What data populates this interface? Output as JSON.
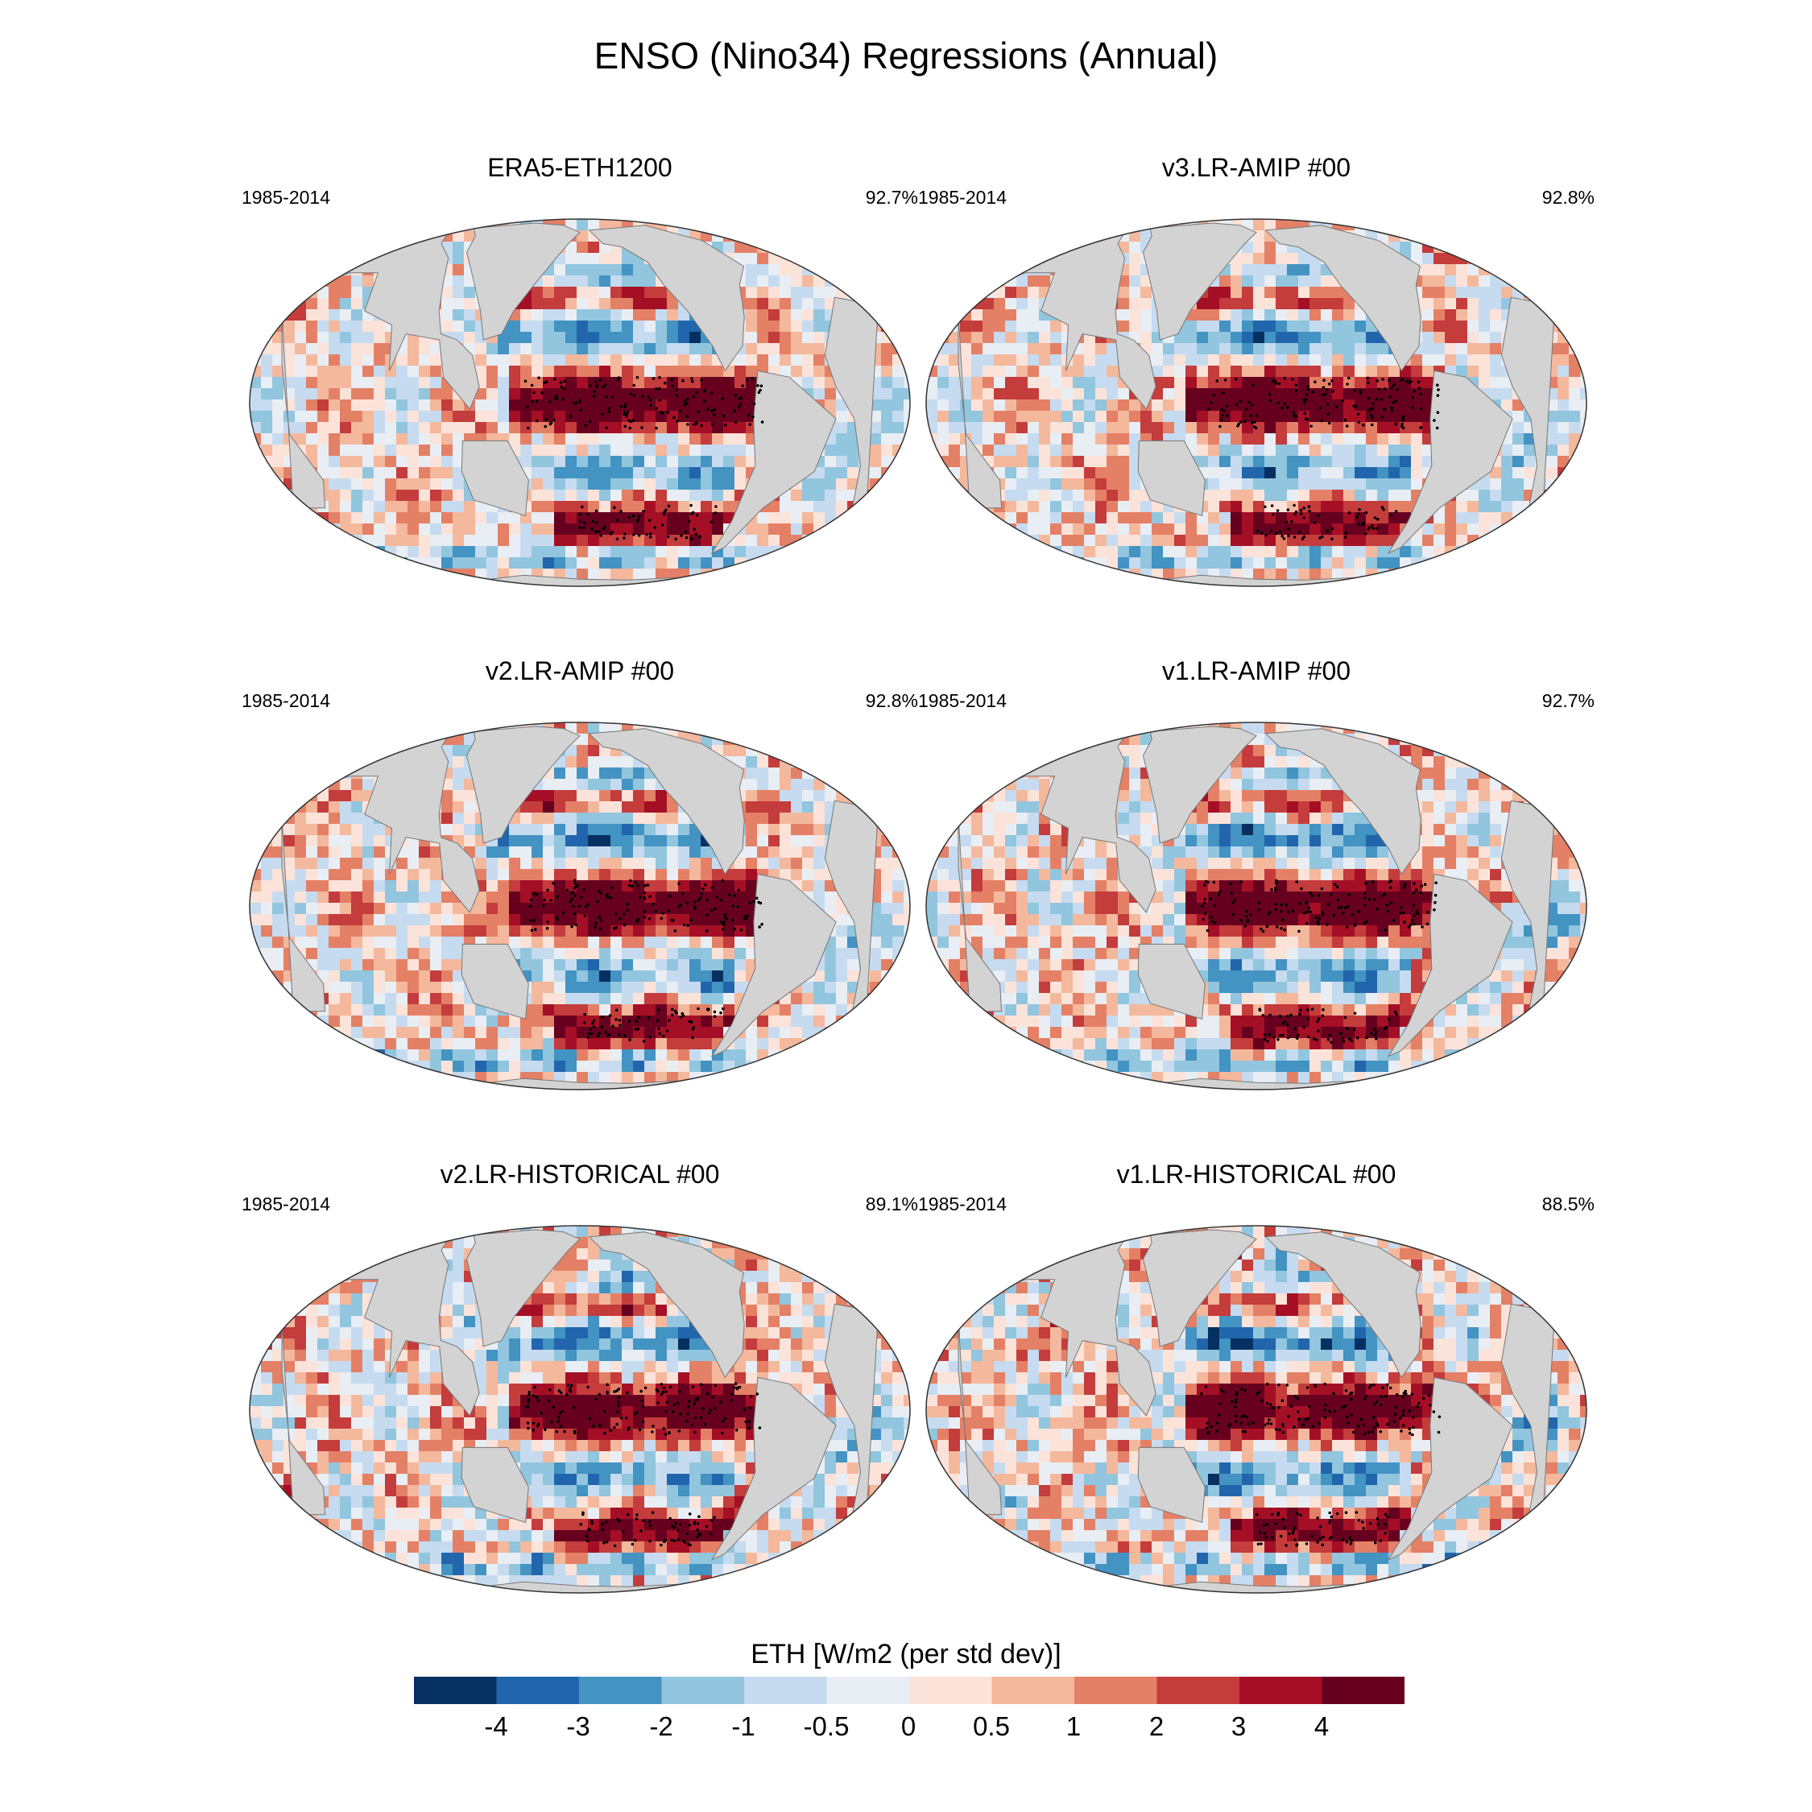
{
  "title": "ENSO (Nino34) Regressions (Annual)",
  "panels": [
    {
      "name": "ERA5-ETH1200",
      "period": "1985-2014",
      "pct": "92.7%"
    },
    {
      "name": "v3.LR-AMIP  #00",
      "period": "1985-2014",
      "pct": "92.8%"
    },
    {
      "name": "v2.LR-AMIP  #00",
      "period": "1985-2014",
      "pct": "92.8%"
    },
    {
      "name": "v1.LR-AMIP  #00",
      "period": "1985-2014",
      "pct": "92.7%"
    },
    {
      "name": "v2.LR-HISTORICAL  #00",
      "period": "1985-2014",
      "pct": "89.1%"
    },
    {
      "name": "v1.LR-HISTORICAL  #00",
      "period": "1985-2014",
      "pct": "88.5%"
    }
  ],
  "colorbar": {
    "title": "ETH [W/m2 (per std dev)]",
    "labels": [
      "-4",
      "-3",
      "-2",
      "-1",
      "-0.5",
      "0",
      "0.5",
      "1",
      "2",
      "3",
      "4"
    ],
    "colors": [
      "#053061",
      "#2166ac",
      "#4393c3",
      "#92c5de",
      "#c6dbef",
      "#e8eef4",
      "#fbe3da",
      "#f4b89d",
      "#e48066",
      "#c43c3c",
      "#a50f26",
      "#67001f"
    ]
  },
  "land_color": "#d3d3d3"
}
